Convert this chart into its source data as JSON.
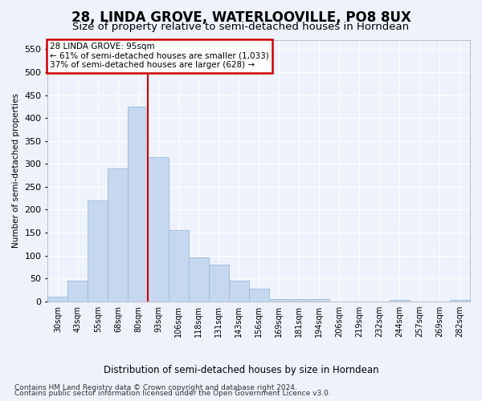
{
  "title": "28, LINDA GROVE, WATERLOOVILLE, PO8 8UX",
  "subtitle": "Size of property relative to semi-detached houses in Horndean",
  "xlabel": "Distribution of semi-detached houses by size in Horndean",
  "ylabel": "Number of semi-detached properties",
  "categories": [
    "30sqm",
    "43sqm",
    "55sqm",
    "68sqm",
    "80sqm",
    "93sqm",
    "106sqm",
    "118sqm",
    "131sqm",
    "143sqm",
    "156sqm",
    "169sqm",
    "181sqm",
    "194sqm",
    "206sqm",
    "219sqm",
    "232sqm",
    "244sqm",
    "257sqm",
    "269sqm",
    "282sqm"
  ],
  "values": [
    10,
    45,
    220,
    290,
    425,
    315,
    155,
    95,
    80,
    45,
    28,
    5,
    5,
    5,
    0,
    0,
    0,
    3,
    0,
    0,
    3
  ],
  "bar_color": "#c5d8f0",
  "bar_edge_color": "#9abbd8",
  "vline_color": "#cc0000",
  "annotation_title": "28 LINDA GROVE: 95sqm",
  "annotation_line1": "← 61% of semi-detached houses are smaller (1,033)",
  "annotation_line2": "37% of semi-detached houses are larger (628) →",
  "annotation_box_color": "#cc0000",
  "ylim": [
    0,
    570
  ],
  "yticks": [
    0,
    50,
    100,
    150,
    200,
    250,
    300,
    350,
    400,
    450,
    500,
    550
  ],
  "footnote1": "Contains HM Land Registry data © Crown copyright and database right 2024.",
  "footnote2": "Contains public sector information licensed under the Open Government Licence v3.0.",
  "background_color": "#eef2fc",
  "grid_color": "#ffffff",
  "title_fontsize": 12,
  "subtitle_fontsize": 9.5,
  "footnote_fontsize": 6.5
}
